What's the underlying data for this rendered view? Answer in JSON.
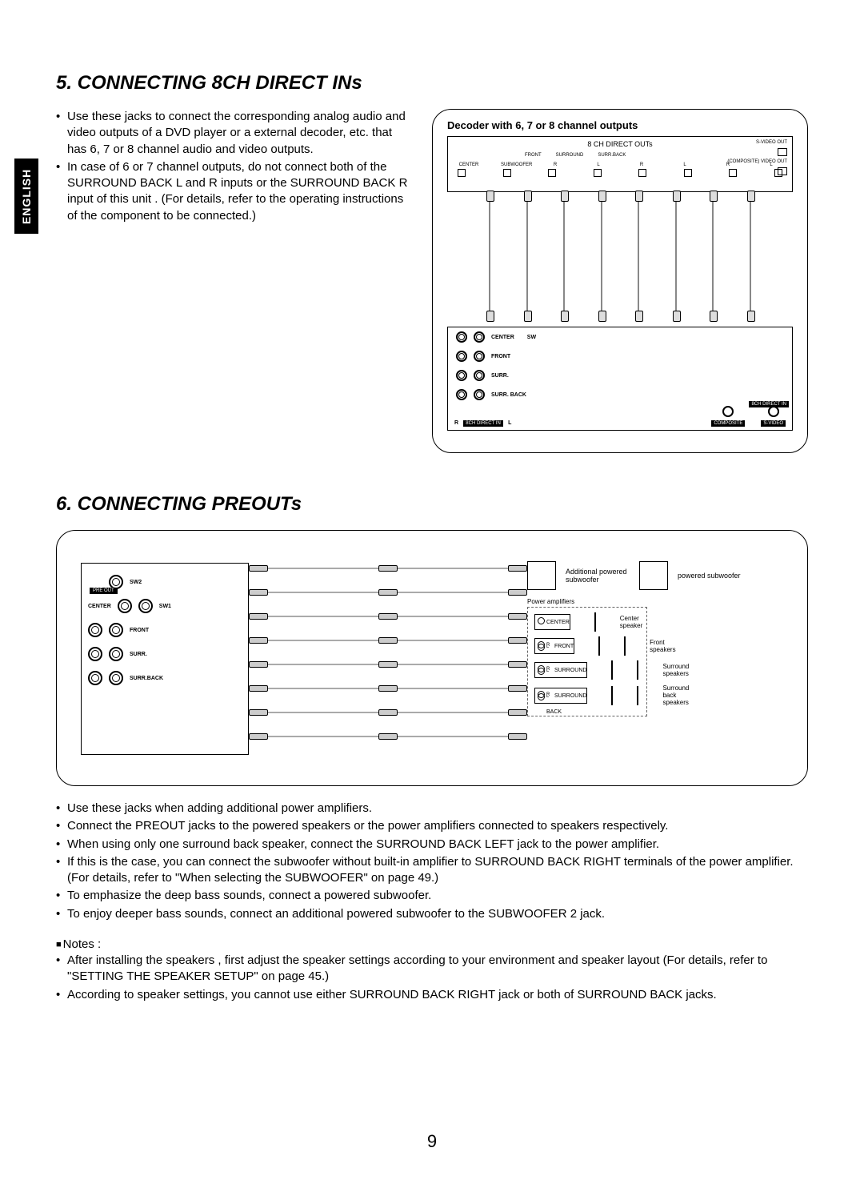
{
  "page_number": "9",
  "language_tab": "ENGLISH",
  "section5": {
    "title": "5. CONNECTING 8CH DIRECT INs",
    "bullets": [
      "Use these jacks to connect the corresponding analog audio and video outputs of a DVD player or a external decoder, etc. that has 6, 7 or 8 channel audio and video outputs.",
      "In case of 6 or 7 channel outputs, do not connect both of the SURROUND BACK L and R inputs or the SURROUND BACK R input of this unit . (For details, refer to the operating instructions of the component to be connected.)"
    ],
    "diagram": {
      "decoder_title": "Decoder with 6, 7 or 8 channel outputs",
      "top_label": "8 CH DIRECT OUTs",
      "top_channels": [
        "CENTER",
        "SUBWOOFER",
        "R",
        "L",
        "R",
        "L",
        "R",
        "L"
      ],
      "top_groups": [
        "FRONT",
        "SURROUND",
        "SURR.BACK"
      ],
      "side_outs": [
        "S-VIDEO OUT",
        "(COMPOSITE) VIDEO OUT"
      ],
      "recv_rows": [
        {
          "jacks": 2,
          "label": "CENTER",
          "extra": "SW"
        },
        {
          "jacks": 2,
          "label": "FRONT"
        },
        {
          "jacks": 2,
          "label": "SURR."
        },
        {
          "jacks": 2,
          "label": "SURR. BACK"
        }
      ],
      "recv_bottom_left": "8CH DIRECT IN",
      "recv_video_in": [
        "COMPOSITE",
        "S-VIDEO"
      ],
      "recv_video_in_label": "8CH DIRECT IN"
    }
  },
  "section6": {
    "title": "6. CONNECTING PREOUTs",
    "diagram": {
      "preout_label": "PRE OUT",
      "rows": [
        {
          "jacks": 1,
          "right_empty": true,
          "label": "SW2"
        },
        {
          "jacks": 2,
          "label_left": "CENTER",
          "label_right": "SW1"
        },
        {
          "jacks": 2,
          "label": "FRONT"
        },
        {
          "jacks": 2,
          "label": "SURR."
        },
        {
          "jacks": 2,
          "label": "SURR.BACK"
        }
      ],
      "right_top": [
        {
          "box": "sub",
          "label": "Additional powered subwoofer"
        },
        {
          "box": "sub",
          "label": "powered subwoofer"
        }
      ],
      "amp_group_title": "Power amplifiers",
      "amps": [
        {
          "name": "CENTER",
          "lr": false,
          "speaker": "Center speaker"
        },
        {
          "name": "FRONT",
          "lr": true,
          "speaker": "Front speakers"
        },
        {
          "name": "SURROUND",
          "lr": true,
          "speaker": "Surround speakers"
        },
        {
          "name": "SURROUND BACK",
          "lr": true,
          "speaker": "Surround back speakers"
        }
      ]
    },
    "bullets": [
      "Use these jacks when adding additional power amplifiers.",
      "Connect the PREOUT jacks to the powered speakers or the power amplifiers connected to speakers respectively.",
      "When using only one surround back speaker, connect the SURROUND BACK LEFT jack to the power amplifier.",
      "If this is the case, you can connect the subwoofer without built-in amplifier to SURROUND BACK RIGHT terminals of the power amplifier.(For details, refer to \"When selecting the SUBWOOFER\" on page 49.)",
      "To emphasize the deep bass sounds, connect a powered subwoofer.",
      "To enjoy deeper bass  sounds, connect an additional powered subwoofer to the SUBWOOFER 2 jack."
    ],
    "notes_label": "Notes :",
    "notes": [
      "After installing the speakers , first adjust the speaker settings according to your environment and speaker layout (For details, refer to \"SETTING THE SPEAKER SETUP\" on page 45.)",
      "According to speaker settings, you cannot use either SURROUND BACK RIGHT jack or both of SURROUND BACK jacks."
    ]
  },
  "colors": {
    "text": "#000000",
    "bg": "#ffffff",
    "cable": "#aaaaaa",
    "dashed": "#666666"
  }
}
